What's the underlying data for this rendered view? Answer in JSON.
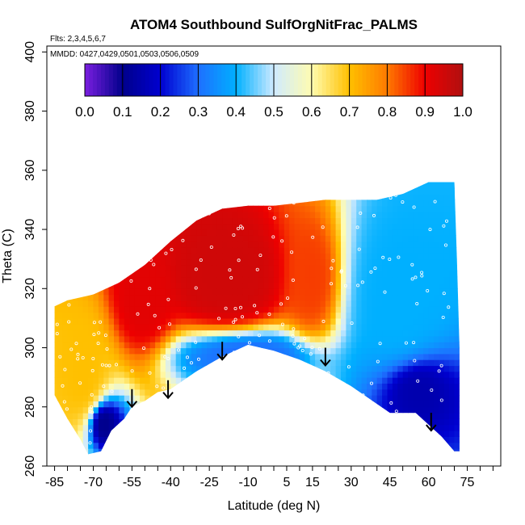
{
  "chart_data": {
    "type": "heatmap",
    "title": "ATOM4 Southbound SulfOrgNitFrac_PALMS",
    "subtitle_flights": "Flts: 2,3,4,5,6,7",
    "subtitle_dates": "MMDD: 0427,0429,0501,0503,0506,0509",
    "xlabel": "Latitude (deg N)",
    "ylabel": "Theta (C)",
    "xlim": [
      -88,
      88
    ],
    "ylim": [
      260,
      402
    ],
    "x_ticks": [
      -85,
      -70,
      -55,
      -40,
      -25,
      -10,
      5,
      15,
      30,
      45,
      60,
      75
    ],
    "y_ticks": [
      260,
      280,
      300,
      320,
      340,
      360,
      380,
      400
    ],
    "grid": false,
    "colorbar": {
      "min": 0.0,
      "max": 1.0,
      "tick_labels": [
        "0.0",
        "0.1",
        "0.2",
        "0.3",
        "0.4",
        "0.5",
        "0.6",
        "0.7",
        "0.8",
        "0.9",
        "1.0"
      ],
      "colors": [
        "#7a1fe0",
        "#00008b",
        "#0000d0",
        "#1e6fff",
        "#00b0ff",
        "#cfeaff",
        "#fffcb0",
        "#ffc000",
        "#ff7a00",
        "#ee0000",
        "#b01010"
      ]
    },
    "regions": [
      {
        "lat_min": -85,
        "lat_max": -62,
        "theta_min": 262,
        "theta_max": 318,
        "value": 0.7
      },
      {
        "lat_min": -72,
        "lat_max": -60,
        "theta_min": 264,
        "theta_max": 285,
        "value": 0.1
      },
      {
        "lat_min": -62,
        "lat_max": -40,
        "theta_min": 296,
        "theta_max": 338,
        "value": 0.92
      },
      {
        "lat_min": -40,
        "lat_max": 5,
        "theta_min": 304,
        "theta_max": 345,
        "value": 0.95
      },
      {
        "lat_min": -40,
        "lat_max": 20,
        "theta_min": 290,
        "theta_max": 305,
        "value": 0.3
      },
      {
        "lat_min": 5,
        "lat_max": 25,
        "theta_min": 300,
        "theta_max": 348,
        "value": 0.85
      },
      {
        "lat_min": 25,
        "lat_max": 72,
        "theta_min": 280,
        "theta_max": 355,
        "value": 0.4
      },
      {
        "lat_min": 40,
        "lat_max": 72,
        "theta_min": 270,
        "theta_max": 300,
        "value": 0.15
      }
    ],
    "markers": [
      {
        "lat": -55,
        "theta": 280
      },
      {
        "lat": -41,
        "theta": 283
      },
      {
        "lat": -20,
        "theta": 296
      },
      {
        "lat": 20,
        "theta": 294
      },
      {
        "lat": 61,
        "theta": 272
      }
    ]
  }
}
